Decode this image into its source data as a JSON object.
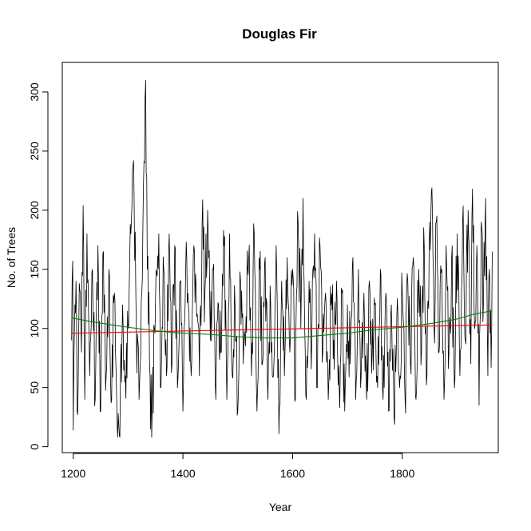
{
  "chart_data": {
    "type": "line",
    "title": "Douglas Fir",
    "xlabel": "Year",
    "ylabel": "No. of Trees",
    "xlim": [
      1180,
      1975
    ],
    "ylim": [
      -5,
      325
    ],
    "xticks": [
      1200,
      1400,
      1600,
      1800
    ],
    "yticks": [
      0,
      50,
      100,
      150,
      200,
      250,
      300
    ],
    "grid": false,
    "legend": "none",
    "x_range": [
      1197,
      1964
    ],
    "series": [
      {
        "kind": "raw",
        "color": "#000000",
        "year_start": 1197,
        "year_end": 1964,
        "key_points": [
          [
            1197,
            90
          ],
          [
            1199,
            157
          ],
          [
            1200,
            14
          ],
          [
            1203,
            120
          ],
          [
            1205,
            140
          ],
          [
            1207,
            30
          ],
          [
            1211,
            138
          ],
          [
            1215,
            80
          ],
          [
            1218,
            204
          ],
          [
            1221,
            40
          ],
          [
            1225,
            180
          ],
          [
            1230,
            60
          ],
          [
            1235,
            150
          ],
          [
            1240,
            40
          ],
          [
            1245,
            170
          ],
          [
            1250,
            30
          ],
          [
            1255,
            165
          ],
          [
            1260,
            60
          ],
          [
            1265,
            150
          ],
          [
            1270,
            40
          ],
          [
            1275,
            130
          ],
          [
            1280,
            20
          ],
          [
            1285,
            8
          ],
          [
            1290,
            120
          ],
          [
            1295,
            60
          ],
          [
            1300,
            100
          ],
          [
            1305,
            180
          ],
          [
            1310,
            242
          ],
          [
            1315,
            100
          ],
          [
            1320,
            40
          ],
          [
            1325,
            130
          ],
          [
            1330,
            240
          ],
          [
            1332,
            310
          ],
          [
            1335,
            150
          ],
          [
            1340,
            60
          ],
          [
            1343,
            8
          ],
          [
            1348,
            100
          ],
          [
            1352,
            147
          ],
          [
            1356,
            180
          ],
          [
            1360,
            50
          ],
          [
            1365,
            150
          ],
          [
            1370,
            60
          ],
          [
            1375,
            180
          ],
          [
            1380,
            70
          ],
          [
            1385,
            170
          ],
          [
            1390,
            50
          ],
          [
            1395,
            140
          ],
          [
            1400,
            30
          ],
          [
            1405,
            150
          ],
          [
            1410,
            120
          ],
          [
            1415,
            60
          ],
          [
            1420,
            170
          ],
          [
            1425,
            110
          ],
          [
            1430,
            60
          ],
          [
            1435,
            190
          ],
          [
            1440,
            130
          ],
          [
            1445,
            200
          ],
          [
            1450,
            90
          ],
          [
            1455,
            150
          ],
          [
            1460,
            40
          ],
          [
            1465,
            120
          ],
          [
            1470,
            80
          ],
          [
            1475,
            170
          ],
          [
            1480,
            40
          ],
          [
            1485,
            180
          ],
          [
            1490,
            60
          ],
          [
            1495,
            120
          ],
          [
            1500,
            30
          ],
          [
            1505,
            140
          ],
          [
            1510,
            70
          ],
          [
            1515,
            110
          ],
          [
            1520,
            160
          ],
          [
            1525,
            60
          ],
          [
            1530,
            180
          ],
          [
            1535,
            30
          ],
          [
            1540,
            150
          ],
          [
            1545,
            70
          ],
          [
            1550,
            160
          ],
          [
            1555,
            40
          ],
          [
            1560,
            120
          ],
          [
            1565,
            60
          ],
          [
            1570,
            170
          ],
          [
            1575,
            11
          ],
          [
            1580,
            140
          ],
          [
            1585,
            60
          ],
          [
            1590,
            160
          ],
          [
            1595,
            80
          ],
          [
            1600,
            150
          ],
          [
            1605,
            40
          ],
          [
            1610,
            190
          ],
          [
            1615,
            100
          ],
          [
            1619,
            210
          ],
          [
            1625,
            40
          ],
          [
            1630,
            140
          ],
          [
            1635,
            90
          ],
          [
            1640,
            180
          ],
          [
            1645,
            50
          ],
          [
            1650,
            170
          ],
          [
            1655,
            80
          ],
          [
            1660,
            130
          ],
          [
            1665,
            40
          ],
          [
            1670,
            120
          ],
          [
            1675,
            90
          ],
          [
            1680,
            140
          ],
          [
            1685,
            50
          ],
          [
            1690,
            130
          ],
          [
            1695,
            30
          ],
          [
            1700,
            120
          ],
          [
            1705,
            70
          ],
          [
            1710,
            160
          ],
          [
            1715,
            40
          ],
          [
            1720,
            150
          ],
          [
            1725,
            60
          ],
          [
            1730,
            130
          ],
          [
            1735,
            40
          ],
          [
            1740,
            140
          ],
          [
            1745,
            80
          ],
          [
            1750,
            120
          ],
          [
            1755,
            50
          ],
          [
            1760,
            150
          ],
          [
            1765,
            40
          ],
          [
            1770,
            130
          ],
          [
            1775,
            30
          ],
          [
            1780,
            120
          ],
          [
            1785,
            25
          ],
          [
            1790,
            110
          ],
          [
            1795,
            50
          ],
          [
            1800,
            130
          ],
          [
            1805,
            40
          ],
          [
            1810,
            140
          ],
          [
            1815,
            70
          ],
          [
            1820,
            160
          ],
          [
            1825,
            40
          ],
          [
            1830,
            150
          ],
          [
            1835,
            80
          ],
          [
            1840,
            170
          ],
          [
            1845,
            60
          ],
          [
            1850,
            190
          ],
          [
            1853,
            215
          ],
          [
            1858,
            100
          ],
          [
            1862,
            190
          ],
          [
            1867,
            80
          ],
          [
            1872,
            150
          ],
          [
            1876,
            40
          ],
          [
            1880,
            170
          ],
          [
            1885,
            80
          ],
          [
            1890,
            160
          ],
          [
            1895,
            50
          ],
          [
            1900,
            180
          ],
          [
            1905,
            60
          ],
          [
            1910,
            190
          ],
          [
            1915,
            90
          ],
          [
            1920,
            200
          ],
          [
            1925,
            70
          ],
          [
            1928,
            218
          ],
          [
            1932,
            100
          ],
          [
            1936,
            170
          ],
          [
            1940,
            35
          ],
          [
            1944,
            190
          ],
          [
            1948,
            120
          ],
          [
            1952,
            210
          ],
          [
            1956,
            60
          ],
          [
            1959,
            150
          ],
          [
            1962,
            67
          ],
          [
            1964,
            165
          ]
        ]
      },
      {
        "kind": "linear-trend",
        "color": "#ff0000",
        "x": [
          1197,
          1964
        ],
        "y": [
          96,
          103
        ]
      },
      {
        "kind": "smooth-trend",
        "color": "#008000",
        "x": [
          1197,
          1230,
          1270,
          1300,
          1350,
          1400,
          1450,
          1500,
          1550,
          1600,
          1650,
          1700,
          1750,
          1800,
          1850,
          1900,
          1930,
          1964
        ],
        "y": [
          109,
          106,
          103,
          101,
          98,
          96,
          95,
          93,
          92,
          92,
          94,
          96,
          99,
          101,
          104,
          108,
          112,
          115
        ]
      }
    ]
  }
}
